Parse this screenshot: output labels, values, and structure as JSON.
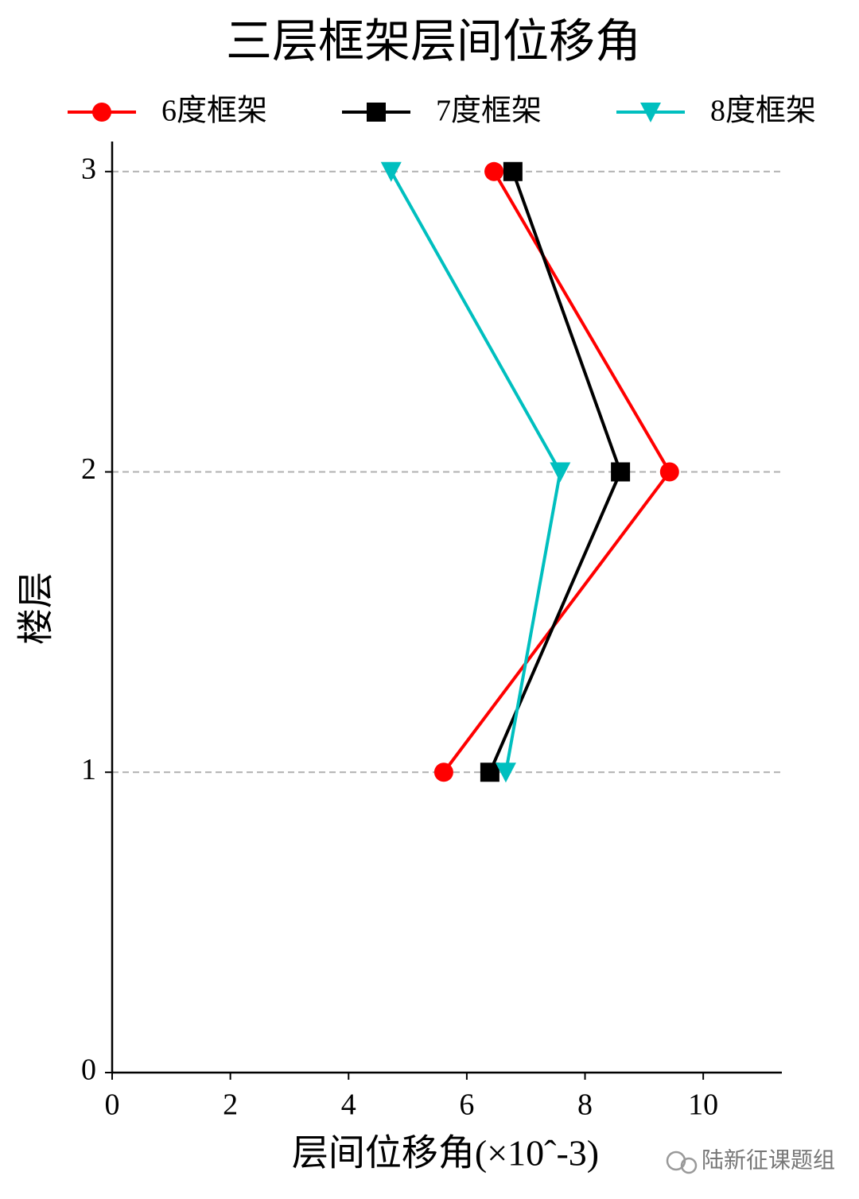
{
  "chart_data": {
    "type": "line",
    "title": "三层框架层间位移角",
    "xlabel": "层间位移角(×10ˆ-3)",
    "ylabel": "楼层",
    "y": [
      1,
      2,
      3
    ],
    "series": [
      {
        "name": "6度框架",
        "color": "#ff0000",
        "marker": "circle",
        "values": [
          5.61,
          9.43,
          6.46
        ]
      },
      {
        "name": "7度框架",
        "color": "#000000",
        "marker": "square",
        "values": [
          6.39,
          8.6,
          6.78
        ]
      },
      {
        "name": "8度框架",
        "color": "#00bfbf",
        "marker": "triangle-down",
        "values": [
          6.66,
          7.58,
          4.72
        ]
      }
    ],
    "xlim": [
      0,
      11.33
    ],
    "ylim": [
      0,
      3.1
    ],
    "xticks": [
      0,
      2,
      4,
      6,
      8,
      10
    ],
    "yticks": [
      0,
      1,
      2,
      3
    ],
    "grid": true,
    "legend": "top",
    "watermark": "陆新征课题组"
  }
}
